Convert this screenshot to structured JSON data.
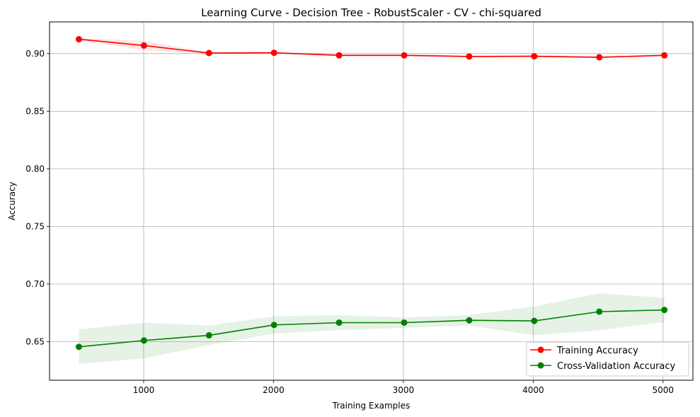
{
  "chart_data": {
    "type": "line",
    "title": "Learning Curve - Decision Tree - RobustScaler - CV - chi-squared",
    "xlabel": "Training Examples",
    "ylabel": "Accuracy",
    "xlim": [
      275,
      5230
    ],
    "ylim": [
      0.6165,
      0.9275
    ],
    "xticks": [
      1000,
      2000,
      3000,
      4000,
      5000
    ],
    "xtick_labels": [
      "1000",
      "2000",
      "3000",
      "4000",
      "5000"
    ],
    "yticks": [
      0.65,
      0.7,
      0.75,
      0.8,
      0.85,
      0.9
    ],
    "ytick_labels": [
      "0.65",
      "0.70",
      "0.75",
      "0.80",
      "0.85",
      "0.90"
    ],
    "grid": true,
    "legend_position": "lower-right",
    "x": [
      501,
      1002,
      1503,
      2004,
      2505,
      3006,
      3507,
      4008,
      4509,
      5010
    ],
    "series": [
      {
        "name": "Training Accuracy",
        "color": "#ff0000",
        "band_color": "#ff0000",
        "marker": "circle",
        "values": [
          0.9125,
          0.907,
          0.9005,
          0.9007,
          0.8985,
          0.8985,
          0.8975,
          0.8977,
          0.8968,
          0.8985
        ],
        "band_upper": [
          0.9135,
          0.911,
          0.9012,
          0.9015,
          0.8992,
          0.8992,
          0.8982,
          0.8985,
          0.8975,
          0.8992
        ],
        "band_lower": [
          0.9115,
          0.903,
          0.8998,
          0.8999,
          0.8978,
          0.8978,
          0.8968,
          0.8969,
          0.8961,
          0.8978
        ]
      },
      {
        "name": "Cross-Validation Accuracy",
        "color": "#008000",
        "band_color": "#008000",
        "marker": "circle",
        "values": [
          0.6455,
          0.651,
          0.6555,
          0.6645,
          0.6665,
          0.6665,
          0.6685,
          0.668,
          0.676,
          0.6775
        ],
        "band_upper": [
          0.6605,
          0.6665,
          0.664,
          0.672,
          0.673,
          0.671,
          0.673,
          0.6805,
          0.692,
          0.688
        ],
        "band_lower": [
          0.6305,
          0.6355,
          0.647,
          0.657,
          0.66,
          0.662,
          0.664,
          0.6555,
          0.66,
          0.667
        ]
      }
    ]
  }
}
